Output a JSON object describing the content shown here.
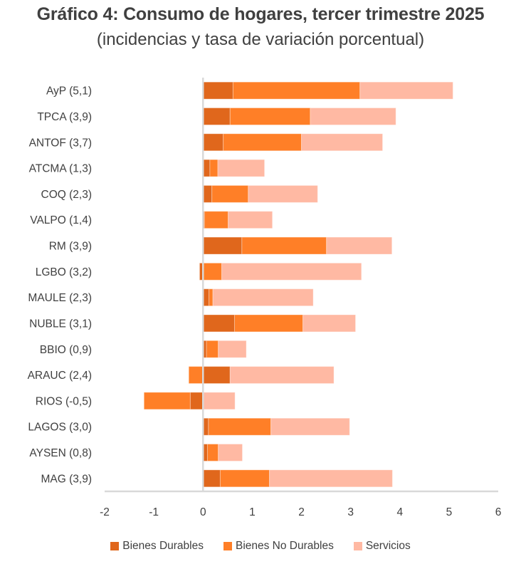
{
  "chart_data": {
    "type": "bar",
    "orientation": "horizontal",
    "stacked": true,
    "title": "Gráfico 4: Consumo de hogares, tercer trimestre 2025",
    "subtitle": "(incidencias y tasa de variación porcentual)",
    "xlabel": "",
    "ylabel": "",
    "xlim": [
      -2,
      6
    ],
    "xticks": [
      -2,
      -1,
      0,
      1,
      2,
      3,
      4,
      5,
      6
    ],
    "xtick_labels": [
      "-2",
      "-1",
      "0",
      "1",
      "2",
      "3",
      "4",
      "5",
      "6"
    ],
    "grid": false,
    "legend_position": "bottom",
    "categories": [
      "AyP (5,1)",
      "TPCA (3,9)",
      "ANTOF (3,7)",
      "ATCMA (1,3)",
      "COQ (2,3)",
      "VALPO (1,4)",
      "RM (3,9)",
      "LGBO (3,2)",
      "MAULE (2,3)",
      "NUBLE (3,1)",
      "BBIO (0,9)",
      "ARAUC (2,4)",
      "RIOS (-0,5)",
      "LAGOS (3,0)",
      "AYSEN (0,8)",
      "MAG (3,9)"
    ],
    "series": [
      {
        "name": "Bienes Durables",
        "color": "#E0671C",
        "values": [
          0.61,
          0.55,
          0.41,
          0.14,
          0.18,
          0.03,
          0.79,
          -0.07,
          0.12,
          0.64,
          0.07,
          0.55,
          -0.26,
          0.11,
          0.09,
          0.35
        ]
      },
      {
        "name": "Bienes No Durables",
        "color": "#FF7F27",
        "values": [
          2.58,
          1.63,
          1.59,
          0.16,
          0.74,
          0.48,
          1.72,
          0.38,
          0.08,
          1.39,
          0.24,
          -0.29,
          -0.94,
          1.27,
          0.22,
          1.0
        ]
      },
      {
        "name": "Servicios",
        "color": "#FFB9A3",
        "values": [
          1.89,
          1.74,
          1.65,
          0.95,
          1.41,
          0.9,
          1.33,
          2.84,
          2.04,
          1.07,
          0.57,
          2.11,
          0.65,
          1.6,
          0.49,
          2.5
        ]
      }
    ]
  }
}
